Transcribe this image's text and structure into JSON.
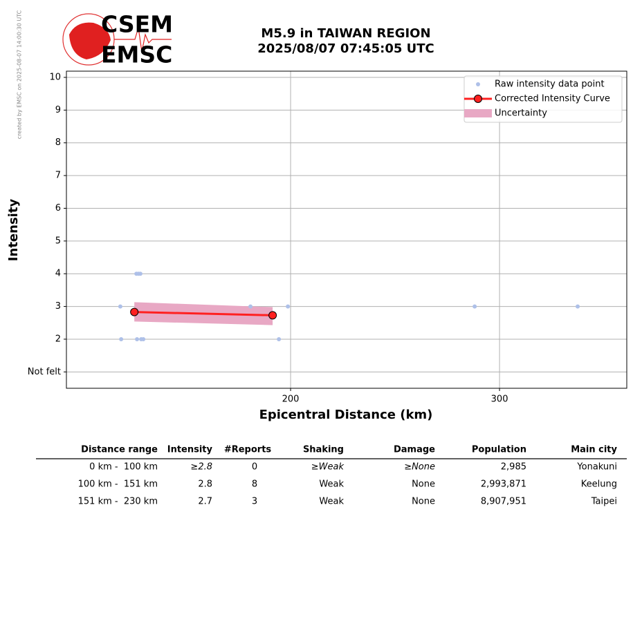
{
  "credit": "created by EMSC on 2025-08-07 14:00:30 UTC",
  "logo": {
    "top": "CSEM",
    "bottom": "EMSC"
  },
  "chart_data": {
    "type": "scatter",
    "title": [
      "M5.9 in TAIWAN REGION",
      "2025/08/07 07:45:05 UTC"
    ],
    "xlabel": "Epicentral Distance (km)",
    "ylabel": "Intensity",
    "xlim": [
      92.7,
      360.9
    ],
    "ylim": [
      0.5,
      10.19
    ],
    "xticks": [
      200,
      300
    ],
    "yticks": [
      {
        "value": 1,
        "label": "Not felt"
      },
      2,
      3,
      4,
      5,
      6,
      7,
      8,
      9,
      10
    ],
    "grid": true,
    "legend": "upper right",
    "series": [
      {
        "name": "Raw intensity data point",
        "color": "#aec0e8",
        "x": [
          118.5,
          118.9,
          126.2,
          127.2,
          128.1,
          126.5,
          128.5,
          129.5,
          180.8,
          198.7,
          194.4,
          288.1,
          337.4
        ],
        "y": [
          3,
          2,
          4,
          4,
          4,
          2,
          2,
          2,
          3,
          3,
          2,
          3,
          3
        ]
      },
      {
        "name": "Corrected Intensity Curve",
        "color": "#ff2020",
        "x": [
          125.2,
          191.4
        ],
        "y": [
          2.83,
          2.73
        ]
      },
      {
        "name": "Uncertainty",
        "color": "#e8a8c4",
        "x": [
          125.2,
          191.4
        ],
        "lower": [
          2.54,
          2.43
        ],
        "upper": [
          3.13,
          2.98
        ]
      }
    ]
  },
  "table": {
    "headers": [
      "Distance range",
      "Intensity",
      "#Reports",
      "Shaking",
      "Damage",
      "Population",
      "Main city"
    ],
    "rows": [
      [
        "0 km -  100 km",
        "≥2.8",
        "0",
        "≥Weak",
        "≥None",
        "2,985",
        "Yonakuni"
      ],
      [
        "100 km -  151 km",
        "2.8",
        "8",
        "Weak",
        "None",
        "2,993,871",
        "Keelung"
      ],
      [
        "151 km -  230 km",
        "2.7",
        "3",
        "Weak",
        "None",
        "8,907,951",
        "Taipei"
      ]
    ]
  }
}
